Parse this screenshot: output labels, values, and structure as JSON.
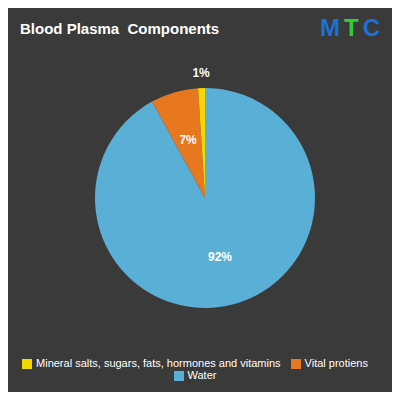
{
  "chart_data": {
    "type": "pie",
    "title": "Blood Plasma  Components",
    "categories": [
      "Water",
      "Vital protiens",
      "Mineral salts, sugars, fats, hormones and vitamins"
    ],
    "values": [
      92,
      7,
      1
    ],
    "value_labels": [
      "92%",
      "7%",
      "1%"
    ],
    "colors": [
      "#5aafd6",
      "#e87820",
      "#f5d800"
    ],
    "data_labels": true,
    "legend": "bottom",
    "annotations": [
      {
        "text": "M",
        "color": "#1e6fd9"
      },
      {
        "text": "T",
        "color": "#32cd32"
      },
      {
        "text": "C",
        "color": "#1e6fd9"
      }
    ]
  }
}
